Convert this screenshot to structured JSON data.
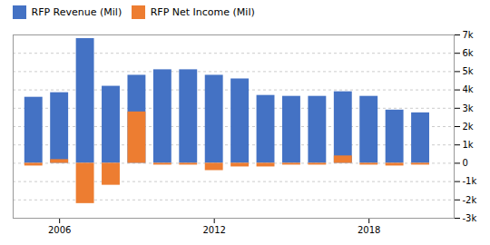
{
  "chart_data": {
    "type": "bar",
    "x": [
      2005,
      2006,
      2007,
      2008,
      2009,
      2010,
      2011,
      2012,
      2013,
      2014,
      2015,
      2016,
      2017,
      2018,
      2019,
      2020
    ],
    "series": [
      {
        "name": "RFP Revenue (Mil)",
        "color": "#4472C4",
        "values": [
          3600,
          3850,
          6800,
          4200,
          4800,
          5100,
          5100,
          4800,
          4600,
          3700,
          3650,
          3650,
          3900,
          3650,
          2900,
          2750
        ]
      },
      {
        "name": "RFP Net Income (Mil)",
        "color": "#ED7D31",
        "values": [
          -150,
          200,
          -2200,
          -1200,
          2800,
          -100,
          -100,
          -400,
          -200,
          -200,
          -100,
          -100,
          400,
          -100,
          -150,
          -100
        ]
      }
    ],
    "xlim": [
      2004.2,
      2021.3
    ],
    "xticks": [
      2006,
      2012,
      2018
    ],
    "ylim": [
      -3000,
      7000
    ],
    "yticks": [
      {
        "value": -3000,
        "label": "-3k"
      },
      {
        "value": -2000,
        "label": "-2k"
      },
      {
        "value": -1000,
        "label": "-1k"
      },
      0,
      {
        "value": 1000,
        "label": "1k"
      },
      {
        "value": 2000,
        "label": "2k"
      },
      {
        "value": 3000,
        "label": "3k"
      },
      {
        "value": 4000,
        "label": "4k"
      },
      {
        "value": 5000,
        "label": "5k"
      },
      {
        "value": 6000,
        "label": "6k"
      },
      {
        "value": 7000,
        "label": "7k"
      }
    ],
    "grid": true,
    "legend": "upper left",
    "stacked": false
  }
}
